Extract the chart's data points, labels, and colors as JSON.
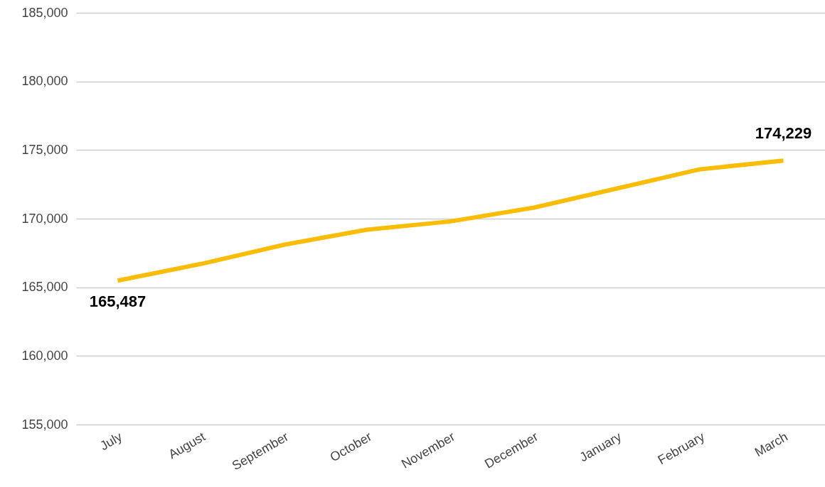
{
  "chart_data": {
    "type": "line",
    "categories": [
      "July",
      "August",
      "September",
      "October",
      "November",
      "December",
      "January",
      "February",
      "March"
    ],
    "series": [
      {
        "color": "#fbbc04",
        "values": [
          165487,
          166700,
          168100,
          169200,
          169800,
          170800,
          172200,
          173600,
          174229
        ],
        "value_labels": [
          "165,487",
          null,
          null,
          null,
          null,
          null,
          null,
          null,
          "174,229"
        ]
      }
    ],
    "ylim": [
      155000,
      185000
    ],
    "yticks": [
      {
        "value": 155000,
        "label": "155,000"
      },
      {
        "value": 160000,
        "label": "160,000"
      },
      {
        "value": 165000,
        "label": "165,000"
      },
      {
        "value": 170000,
        "label": "170,000"
      },
      {
        "value": 175000,
        "label": "175,000"
      },
      {
        "value": 180000,
        "label": "180,000"
      },
      {
        "value": 185000,
        "label": "185,000"
      }
    ],
    "grid": "y",
    "marker": "none",
    "line_style": "solid"
  }
}
